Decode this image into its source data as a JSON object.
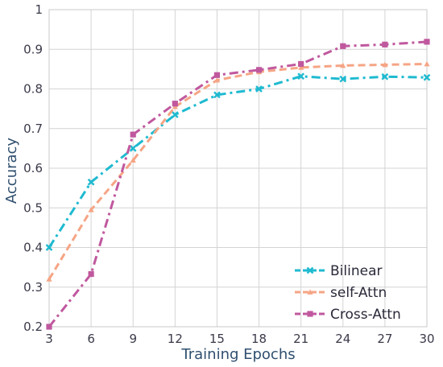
{
  "chart_data": {
    "type": "line",
    "title": "",
    "xlabel": "Training Epochs",
    "ylabel": "Accuracy",
    "x": [
      3,
      6,
      9,
      12,
      15,
      18,
      21,
      24,
      27,
      30
    ],
    "xlim": [
      3,
      30
    ],
    "ylim": [
      0.2,
      1.0
    ],
    "xticks": [
      "3",
      "6",
      "9",
      "12",
      "15",
      "18",
      "21",
      "24",
      "27",
      "30"
    ],
    "yticks": [
      "0.2",
      "0.3",
      "0.4",
      "0.5",
      "0.6",
      "0.7",
      "0.8",
      "0.9",
      "1"
    ],
    "grid": true,
    "legend_position": "bottom-right",
    "series": [
      {
        "name": "Bilinear",
        "color": "#1fbad0",
        "marker": "x",
        "dash": "dashdot",
        "values": [
          0.4,
          0.565,
          0.65,
          0.735,
          0.785,
          0.8,
          0.832,
          0.825,
          0.831,
          0.829
        ]
      },
      {
        "name": "self-Attn",
        "color": "#f5a585",
        "marker": "triangle",
        "dash": "dashed",
        "values": [
          0.32,
          0.495,
          0.62,
          0.755,
          0.822,
          0.843,
          0.854,
          0.859,
          0.861,
          0.863
        ]
      },
      {
        "name": "Cross-Attn",
        "color": "#c0589e",
        "marker": "square",
        "dash": "dashdot",
        "values": [
          0.2,
          0.333,
          0.685,
          0.763,
          0.835,
          0.848,
          0.863,
          0.908,
          0.912,
          0.919
        ]
      }
    ]
  }
}
